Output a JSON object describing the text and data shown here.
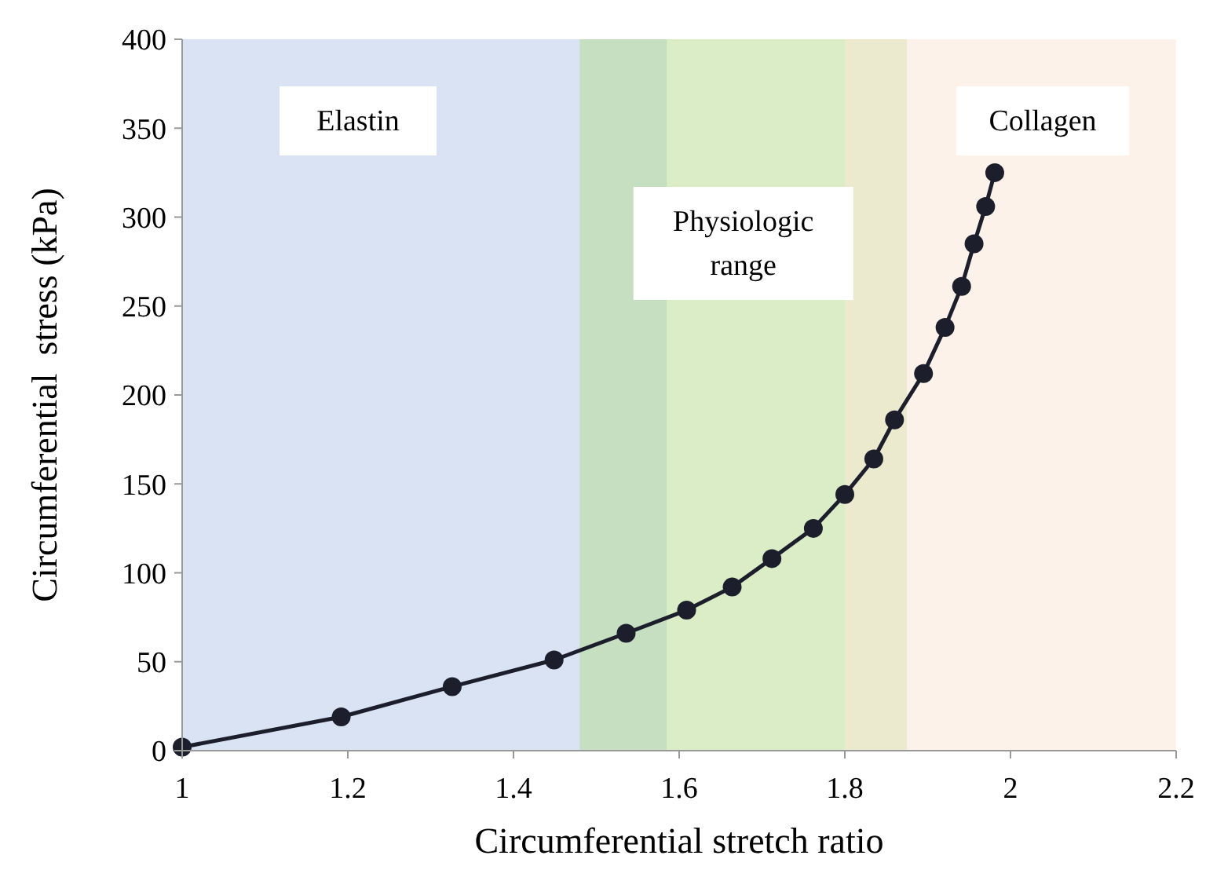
{
  "chart_data": {
    "type": "line",
    "xlabel": "Circumferential stretch ratio",
    "ylabel": "Circumferential  stress (kPa)",
    "x": [
      1.0,
      1.192,
      1.326,
      1.449,
      1.536,
      1.609,
      1.664,
      1.712,
      1.762,
      1.8,
      1.835,
      1.86,
      1.895,
      1.921,
      1.941,
      1.956,
      1.97,
      1.981
    ],
    "series": [
      {
        "color": "#1c1f2b",
        "values": [
          2,
          19,
          36,
          51,
          66,
          79,
          92,
          108,
          125,
          144,
          164,
          186,
          212,
          238,
          261,
          285,
          306,
          325
        ]
      }
    ],
    "marker": "circle",
    "line_style": "solid",
    "grid": false,
    "xlim": [
      1,
      2.2
    ],
    "xticks": [
      1,
      1.2,
      1.4,
      1.6,
      1.8,
      2,
      2.2
    ],
    "ylim": [
      0,
      400
    ],
    "yticks": [
      0,
      50,
      100,
      150,
      200,
      250,
      300,
      350,
      400
    ],
    "bands": [
      {
        "axis": "x",
        "from": 1,
        "to": 1.585,
        "label": "Elastin",
        "color": "#b4c7e7"
      },
      {
        "axis": "x",
        "from": 1.48,
        "to": 1.875,
        "label": "Physiologic range",
        "color": "#b5dc8f"
      },
      {
        "axis": "x",
        "from": 1.8,
        "to": 2.2,
        "label": "Collagen",
        "color": "#fbe5d6"
      }
    ]
  }
}
